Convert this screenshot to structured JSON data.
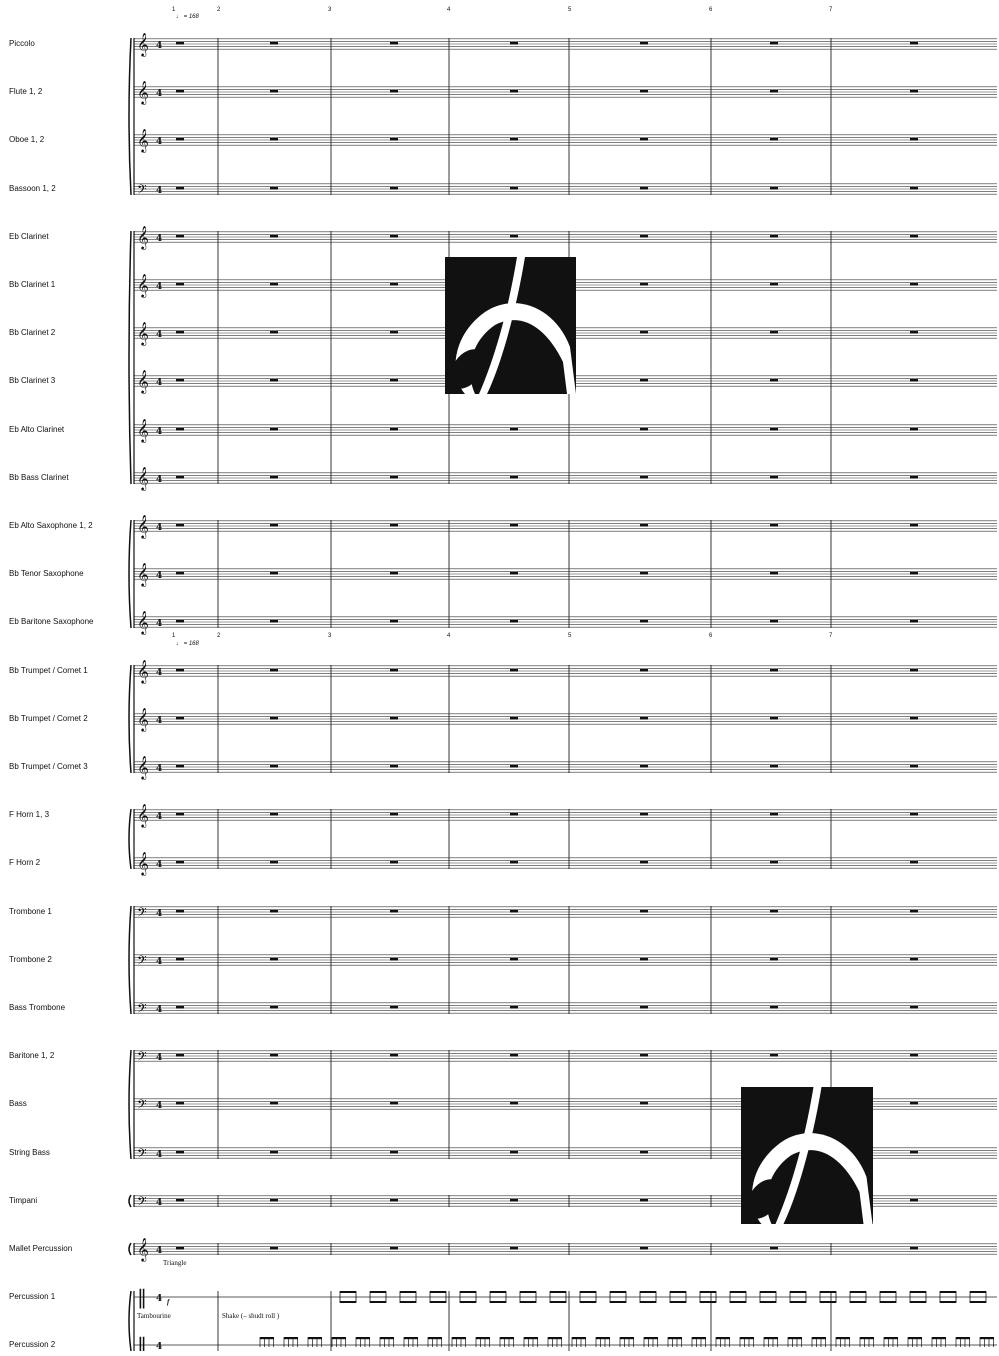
{
  "score": {
    "instruments": [
      "Piccolo",
      "Flute 1, 2",
      "Oboe 1, 2",
      "Bassoon 1, 2",
      "Eb Clarinet",
      "Bb Clarinet 1",
      "Bb Clarinet 2",
      "Bb Clarinet 3",
      "Eb Alto Clarinet",
      "Bb Bass Clarinet",
      "Eb Alto Saxophone 1, 2",
      "Bb Tenor Saxophone",
      "Eb Baritone Saxophone",
      "Bb Trumpet / Cornet 1",
      "Bb Trumpet / Cornet 2",
      "Bb Trumpet / Cornet 3",
      "F Horn 1, 3",
      "F Horn 2",
      "Trombone 1",
      "Trombone 2",
      "Bass Trombone",
      "Baritone 1, 2",
      "Bass",
      "String Bass",
      "Timpani",
      "Mallet Percussion",
      "Percussion 1",
      "Percussion 2"
    ],
    "clefs": [
      "treble",
      "treble",
      "treble",
      "bass",
      "treble",
      "treble",
      "treble",
      "treble",
      "treble",
      "treble",
      "treble",
      "treble",
      "treble",
      "treble",
      "treble",
      "treble",
      "treble",
      "treble",
      "bass",
      "bass",
      "bass",
      "bass",
      "bass",
      "bass",
      "bass",
      "treble",
      "percussion",
      "percussion"
    ],
    "measure_numbers_top": [
      "1",
      "2",
      "3",
      "4",
      "5",
      "6",
      "7"
    ],
    "measure_numbers_brass": [
      "1",
      "2",
      "3",
      "4",
      "5",
      "6",
      "7"
    ],
    "tempo_top": "♩ = 168",
    "tempo_brass": "♩ = 168",
    "perc1_instrument": "Triangle",
    "perc2_instrument": "Tambourine",
    "perc2_technique": "Shake (– shudt roll )",
    "dynamic": "f",
    "logo_symbol": "publisher-logo-icon"
  }
}
